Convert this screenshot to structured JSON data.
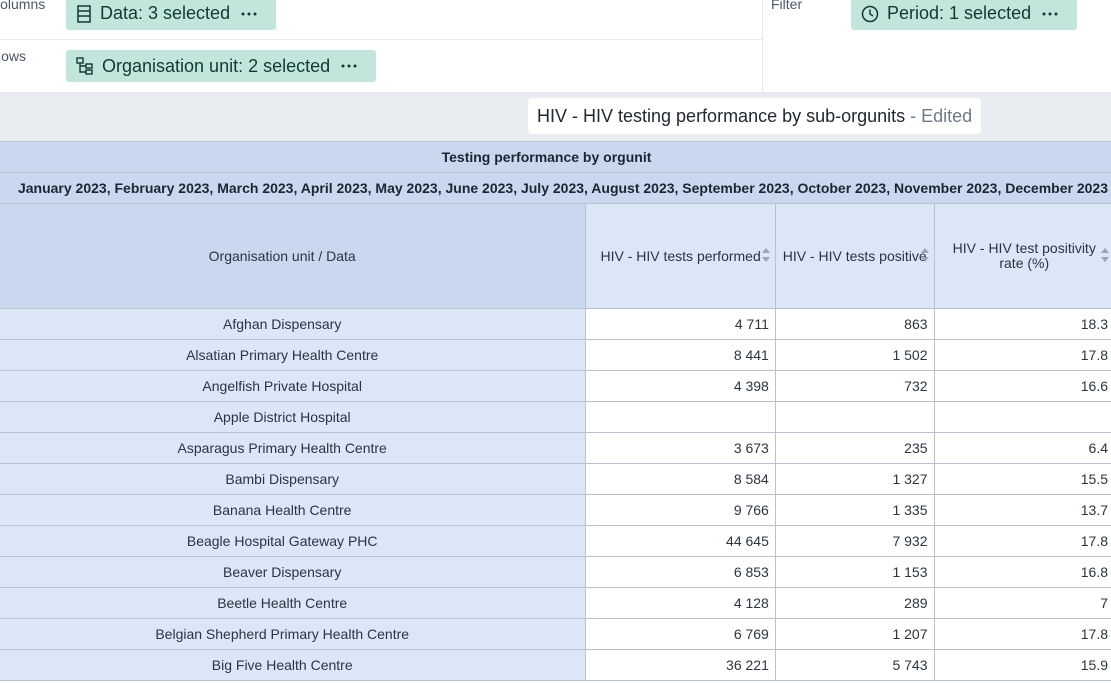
{
  "layout": {
    "columns_label": "Columns",
    "rows_label": "Rows",
    "filter_label": "Filter",
    "columns_chip": "Data: 3 selected",
    "rows_chip": "Organisation unit: 2 selected",
    "filter_chip": "Period: 1 selected"
  },
  "visualization": {
    "title": "HIV - HIV testing performance by sub-orgunits",
    "status": "- Edited"
  },
  "table": {
    "title": "Testing performance by orgunit",
    "periods": "January 2023, February 2023, March 2023, April 2023, May 2023, June 2023, July 2023, August 2023, September 2023, October 2023, November 2023, December 2023",
    "corner": "Organisation unit / Data",
    "columns": [
      "HIV - HIV tests performed",
      "HIV - HIV tests positive",
      "HIV - HIV test positivity rate (%)"
    ],
    "rows": [
      [
        "Afghan Dispensary",
        "4 711",
        "863",
        "18.3"
      ],
      [
        "Alsatian Primary Health Centre",
        "8 441",
        "1 502",
        "17.8"
      ],
      [
        "Angelfish Private Hospital",
        "4 398",
        "732",
        "16.6"
      ],
      [
        "Apple District Hospital",
        null,
        null,
        null
      ],
      [
        "Asparagus Primary Health Centre",
        "3 673",
        "235",
        "6.4"
      ],
      [
        "Bambi Dispensary",
        "8 584",
        "1 327",
        "15.5"
      ],
      [
        "Banana Health Centre",
        "9 766",
        "1 335",
        "13.7"
      ],
      [
        "Beagle Hospital Gateway PHC",
        "44 645",
        "7 932",
        "17.8"
      ],
      [
        "Beaver Dispensary",
        "6 853",
        "1 153",
        "16.8"
      ],
      [
        "Beetle Health Centre",
        "4 128",
        "289",
        "7"
      ],
      [
        "Belgian Shepherd Primary Health Centre",
        "6 769",
        "1 207",
        "17.8"
      ],
      [
        "Big Five Health Centre",
        "36 221",
        "5 743",
        "15.9"
      ]
    ]
  }
}
